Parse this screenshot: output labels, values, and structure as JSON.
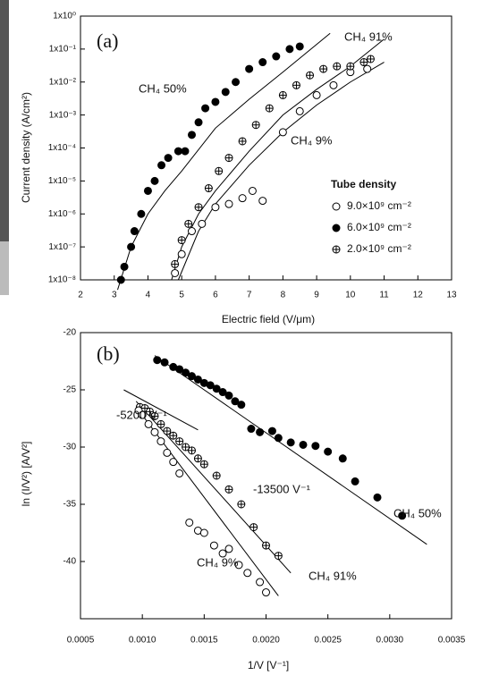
{
  "chart_data": [
    {
      "type": "scatter",
      "log_y": true,
      "annotations": [
        "(a)",
        "CH₄ 91%",
        "CH₄ 50%",
        "CH₄ 9%"
      ],
      "xlabel": "Electric field (V/μm)",
      "ylabel": "Current density (A/cm²)",
      "xlim": [
        2,
        13
      ],
      "ylim": [
        1e-08,
        1
      ],
      "xticks": [
        2,
        3,
        4,
        5,
        6,
        7,
        8,
        9,
        10,
        11,
        12,
        13
      ],
      "yticks": [
        {
          "value": 1e-08,
          "label": "1x10⁻⁸"
        },
        {
          "value": 1e-07,
          "label": "1x10⁻⁷"
        },
        {
          "value": 1e-06,
          "label": "1x10⁻⁶"
        },
        {
          "value": 1e-05,
          "label": "1x10⁻⁵"
        },
        {
          "value": 0.0001,
          "label": "1x10⁻⁴"
        },
        {
          "value": 0.001,
          "label": "1x10⁻³"
        },
        {
          "value": 0.01,
          "label": "1x10⁻²"
        },
        {
          "value": 0.1,
          "label": "1x10⁻¹"
        },
        {
          "value": 1,
          "label": "1x10⁰"
        }
      ],
      "legend_title": "Tube density",
      "series": [
        {
          "name": "9.0×10⁹ cm⁻²",
          "marker": "open",
          "color": "#000000",
          "x": [
            4.8,
            5,
            5.3,
            5.6,
            6,
            6.4,
            6.8,
            7.1,
            7.4,
            8,
            8.5,
            9,
            9.5,
            10,
            10.5
          ],
          "values": [
            1.6e-08,
            6e-08,
            3e-07,
            5e-07,
            1.6e-06,
            2e-06,
            3e-06,
            5e-06,
            2.5e-06,
            0.0003,
            0.0013,
            0.004,
            0.008,
            0.02,
            0.025
          ]
        },
        {
          "name": "6.0×10⁹ cm⁻²",
          "marker": "filled",
          "color": "#000000",
          "x": [
            3.2,
            3.3,
            3.5,
            3.6,
            3.8,
            4,
            4.2,
            4.4,
            4.6,
            4.9,
            5.1,
            5.3,
            5.5,
            5.7,
            6,
            6.3,
            6.6,
            7,
            7.4,
            7.8,
            8.2,
            8.5
          ],
          "values": [
            1e-08,
            2.5e-08,
            1e-07,
            3e-07,
            1e-06,
            5e-06,
            1e-05,
            3e-05,
            5e-05,
            8e-05,
            8e-05,
            0.00025,
            0.0006,
            0.0016,
            0.0025,
            0.005,
            0.01,
            0.025,
            0.04,
            0.06,
            0.1,
            0.12
          ]
        },
        {
          "name": "2.0×10⁹ cm⁻²",
          "marker": "crossed",
          "color": "#000000",
          "x": [
            4.8,
            5,
            5.2,
            5.5,
            5.8,
            6.1,
            6.4,
            6.8,
            7.2,
            7.6,
            8,
            8.4,
            8.8,
            9.2,
            9.6,
            10,
            10.4,
            10.6
          ],
          "values": [
            3e-08,
            1.6e-07,
            5e-07,
            1.6e-06,
            6e-06,
            2e-05,
            5e-05,
            0.00016,
            0.0005,
            0.0016,
            0.004,
            0.008,
            0.016,
            0.025,
            0.03,
            0.03,
            0.04,
            0.05
          ]
        }
      ],
      "fits": [
        {
          "x": [
            3.1,
            3.5,
            4,
            4.5,
            5,
            6,
            7,
            8,
            9.4
          ],
          "values": [
            5e-09,
            1e-07,
            1e-06,
            5e-06,
            2e-05,
            0.0004,
            0.003,
            0.02,
            0.3
          ]
        },
        {
          "x": [
            4.7,
            5,
            5.5,
            6,
            7,
            8,
            9,
            10,
            11
          ],
          "values": [
            1e-08,
            1e-07,
            1e-06,
            5e-06,
            8e-05,
            0.001,
            0.006,
            0.03,
            0.2
          ]
        },
        {
          "x": [
            4.9,
            5.5,
            6,
            7,
            8,
            9,
            10,
            11
          ],
          "values": [
            1e-08,
            3e-07,
            2e-06,
            3e-05,
            0.0003,
            0.002,
            0.01,
            0.04
          ]
        }
      ]
    },
    {
      "type": "scatter",
      "log_y": false,
      "annotations": [
        "(b)",
        "-5200 V⁻¹",
        "-13500 V⁻¹",
        "CH₄ 50%",
        "CH₄ 9%",
        "CH₄ 91%"
      ],
      "xlabel": "1/V [V⁻¹]",
      "ylabel": "ln (I/V²) [A/V²]",
      "xlim": [
        0.0005,
        0.0035
      ],
      "ylim": [
        -45,
        -20
      ],
      "xticks": [
        0.0005,
        {
          "value": 0.001,
          "label": "0.0010"
        },
        0.0015,
        {
          "value": 0.002,
          "label": "0.0020"
        },
        0.0025,
        {
          "value": 0.003,
          "label": "0.0030"
        },
        0.0035
      ],
      "yticks": [
        -20,
        -25,
        -30,
        -35,
        -40
      ],
      "series": [
        {
          "name": "CH₄ 50%",
          "marker": "filled",
          "color": "#000000",
          "x": [
            0.00112,
            0.00118,
            0.00125,
            0.0013,
            0.00135,
            0.0014,
            0.00145,
            0.0015,
            0.00155,
            0.0016,
            0.00165,
            0.0017,
            0.00175,
            0.0018,
            0.00188,
            0.00195,
            0.00205,
            0.0021,
            0.0022,
            0.0023,
            0.0024,
            0.0025,
            0.00262,
            0.00272,
            0.0029,
            0.0031
          ],
          "values": [
            -22.4,
            -22.6,
            -23,
            -23.2,
            -23.5,
            -23.8,
            -24.1,
            -24.4,
            -24.6,
            -24.9,
            -25.2,
            -25.5,
            -26,
            -26.3,
            -28.4,
            -28.7,
            -28.6,
            -29.2,
            -29.6,
            -29.8,
            -29.9,
            -30.4,
            -31,
            -33,
            -34.4,
            -36
          ]
        },
        {
          "name": "CH₄ 91%",
          "marker": "crossed",
          "color": "#000000",
          "x": [
            0.00098,
            0.00102,
            0.00106,
            0.0011,
            0.00115,
            0.0012,
            0.00125,
            0.0013,
            0.00135,
            0.0014,
            0.00145,
            0.0015,
            0.0016,
            0.0017,
            0.0018,
            0.0019,
            0.002,
            0.0021
          ],
          "values": [
            -26.5,
            -26.6,
            -26.9,
            -27.3,
            -28,
            -28.6,
            -29,
            -29.5,
            -30,
            -30.3,
            -31,
            -31.5,
            -32.5,
            -33.7,
            -35,
            -37,
            -38.6,
            -39.5
          ]
        },
        {
          "name": "CH₄ 9%",
          "marker": "open",
          "color": "#000000",
          "x": [
            0.00097,
            0.001,
            0.00105,
            0.0011,
            0.00115,
            0.0012,
            0.00125,
            0.0013,
            0.00138,
            0.00145,
            0.0015,
            0.00158,
            0.00165,
            0.0017,
            0.00178,
            0.00185,
            0.00195,
            0.002
          ],
          "values": [
            -26.8,
            -27.2,
            -28,
            -28.7,
            -29.5,
            -30.5,
            -31.3,
            -32.3,
            -36.6,
            -37.3,
            -37.5,
            -38.6,
            -39.3,
            -38.9,
            -40.3,
            -41,
            -41.8,
            -42.7
          ]
        }
      ],
      "fits": [
        {
          "x": [
            0.0011,
            0.0033
          ],
          "values": [
            -22,
            -38.5
          ]
        },
        {
          "x": [
            0.00085,
            0.00145
          ],
          "values": [
            -25,
            -28.5
          ]
        },
        {
          "x": [
            0.00095,
            0.0022
          ],
          "values": [
            -26,
            -41
          ]
        },
        {
          "x": [
            0.00095,
            0.0021
          ],
          "values": [
            -26.5,
            -43
          ]
        }
      ]
    }
  ]
}
